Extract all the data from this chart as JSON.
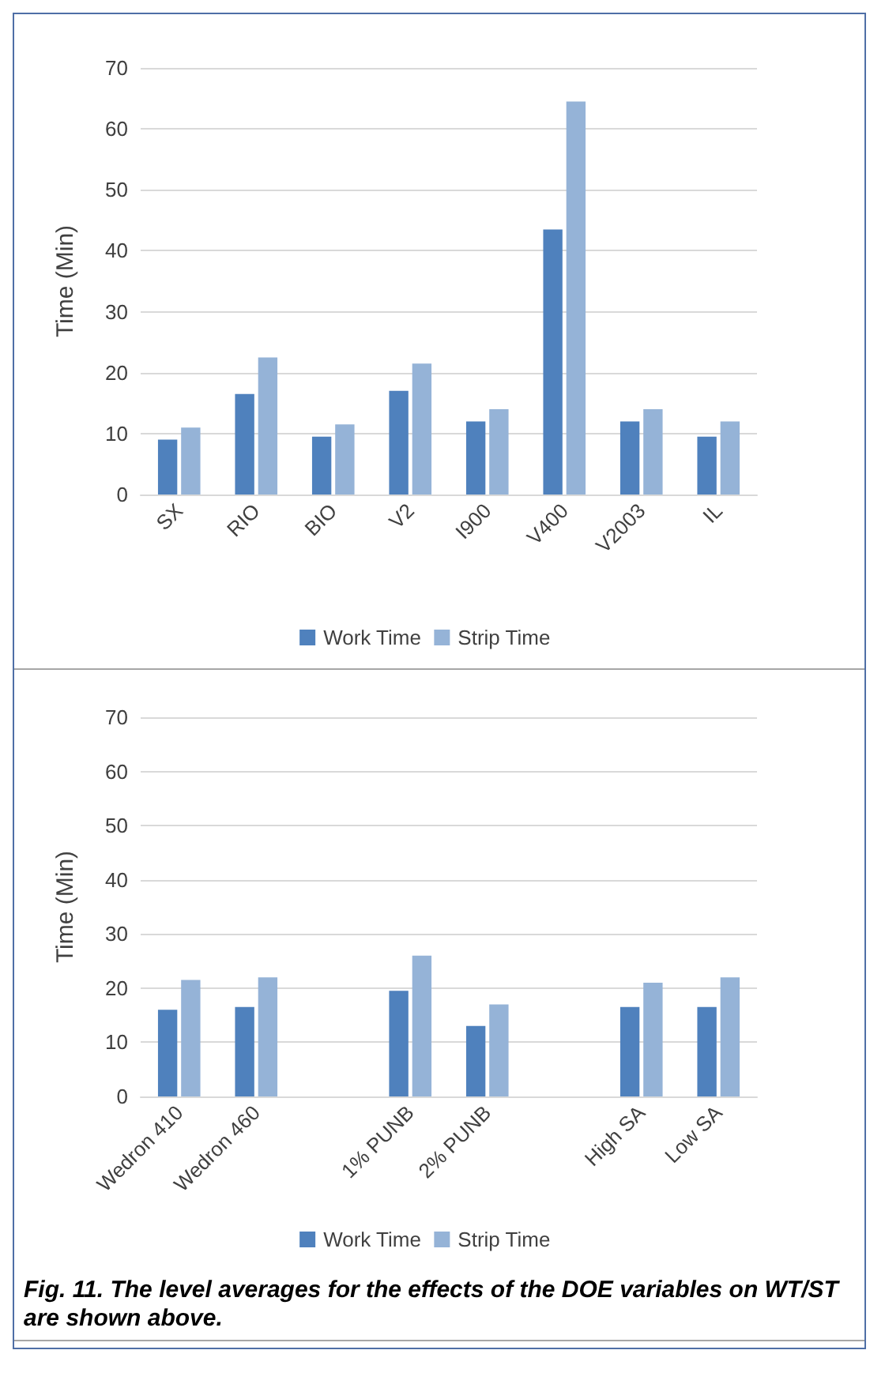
{
  "chart_data": [
    {
      "type": "bar",
      "ylabel": "Time (Min)",
      "categories": [
        "SX",
        "RIO",
        "BIO",
        "V2",
        "I900",
        "V400",
        "V2003",
        "IL"
      ],
      "series": [
        {
          "name": "Work Time",
          "color": "#4f81bd",
          "values": [
            9,
            16.5,
            9.5,
            17,
            12,
            43.5,
            12,
            9.5
          ]
        },
        {
          "name": "Strip Time",
          "color": "#95b3d7",
          "values": [
            11,
            22.5,
            11.5,
            21.5,
            14,
            64.5,
            14,
            12
          ]
        }
      ],
      "ylim": [
        0,
        70
      ],
      "yticks": [
        0,
        10,
        20,
        30,
        40,
        50,
        60,
        70
      ],
      "grid": "y",
      "legend": "bottom"
    },
    {
      "type": "bar",
      "ylabel": "Time (Min)",
      "categories": [
        "Wedron 410",
        "Wedron 460",
        null,
        "1% PUNB",
        "2% PUNB",
        null,
        "High SA",
        "Low SA"
      ],
      "series": [
        {
          "name": "Work Time",
          "color": "#4f81bd",
          "values": [
            16,
            16.5,
            null,
            19.5,
            13,
            null,
            16.5,
            16.5
          ]
        },
        {
          "name": "Strip Time",
          "color": "#95b3d7",
          "values": [
            21.5,
            22,
            null,
            26,
            17,
            null,
            21,
            22
          ]
        }
      ],
      "ylim": [
        0,
        70
      ],
      "yticks": [
        0,
        10,
        20,
        30,
        40,
        50,
        60,
        70
      ],
      "grid": "y",
      "legend": "bottom",
      "annotations": [
        "Fig. 11.  The level averages for the effects of the DOE variables on WT/ST are shown above."
      ]
    }
  ]
}
